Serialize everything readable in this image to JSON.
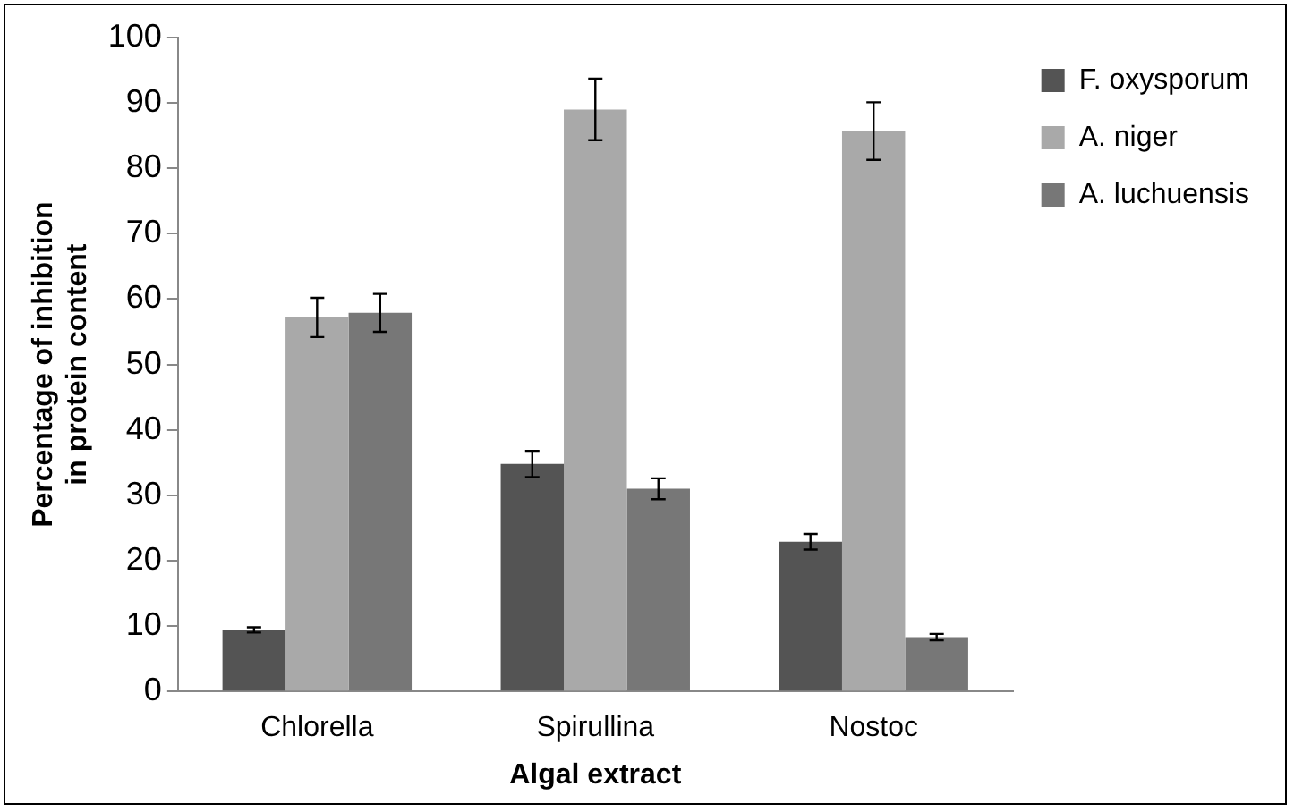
{
  "chart_data": {
    "type": "bar",
    "xlabel": "Algal extract",
    "ylabel": "Percentage of inhibition in protein content",
    "categories": [
      "Chlorella",
      "Spirullina",
      "Nostoc"
    ],
    "series": [
      {
        "name": "F. oxysporum",
        "color": "#545454",
        "values": [
          9.4,
          34.8,
          22.9
        ],
        "errors": [
          0.4,
          2,
          1.2
        ]
      },
      {
        "name": "A. niger",
        "color": "#a9a9a9",
        "values": [
          57.2,
          89,
          85.7
        ],
        "errors": [
          3,
          4.7,
          4.4
        ]
      },
      {
        "name": "A. luchuensis",
        "color": "#777777",
        "values": [
          57.9,
          31,
          8.3
        ],
        "errors": [
          2.9,
          1.6,
          0.5
        ]
      }
    ],
    "ylim": [
      0,
      100
    ],
    "yticks": [
      0,
      10,
      20,
      30,
      40,
      50,
      60,
      70,
      80,
      90,
      100
    ],
    "grid": false,
    "legend": "right"
  }
}
